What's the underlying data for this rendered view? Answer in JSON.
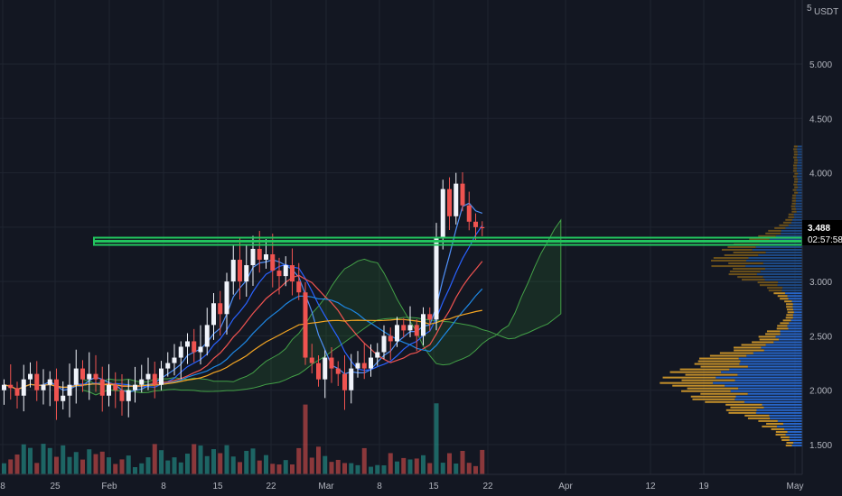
{
  "currency_label": "USDT",
  "top_tick": "5",
  "current_price_label": "3.488",
  "countdown_label": "02:57:58",
  "colors": {
    "background": "#131722",
    "grid": "#1f2430",
    "up": "#26a69a",
    "down": "#ef5350",
    "candle_up": "#f0f3fa",
    "candle_down": "#ef5350",
    "support_line": "#22c55e",
    "ma_fast": "#2962ff",
    "ma_slow": "#f5a623",
    "vp_up": "#2a6fdb",
    "vp_down": "#e3a42b",
    "cloud_green": "#2e7d32",
    "cloud_red": "#b71c1c"
  },
  "chart_data": {
    "type": "candlestick",
    "title": "",
    "y_axis": {
      "ticks": [
        5.0,
        4.5,
        4.0,
        3.5,
        3.0,
        2.5,
        2.0,
        1.5
      ],
      "tick_labels": [
        "5.000",
        "4.500",
        "4.000",
        "3.500",
        "3.000",
        "2.500",
        "2.000",
        "1.500"
      ],
      "range": [
        1.33,
        5.53
      ]
    },
    "x_axis": {
      "tick_labels": [
        "8",
        "25",
        "Feb",
        "8",
        "15",
        "22",
        "Mar",
        "8",
        "15",
        "22",
        "Apr",
        "12",
        "19",
        "May"
      ]
    },
    "support_level": 3.37,
    "current_price": 3.488,
    "candles_close": [
      2.05,
      2.02,
      1.95,
      2.1,
      2.15,
      2.0,
      2.05,
      2.1,
      1.9,
      1.95,
      2.05,
      2.2,
      2.1,
      2.15,
      2.1,
      1.95,
      2.05,
      2.0,
      1.9,
      2.0,
      2.05,
      2.1,
      2.15,
      2.05,
      2.2,
      2.25,
      2.3,
      2.4,
      2.45,
      2.35,
      2.4,
      2.6,
      2.8,
      2.7,
      3.0,
      3.2,
      3.0,
      3.15,
      3.3,
      3.2,
      3.25,
      3.1,
      3.05,
      3.15,
      3.0,
      2.9,
      2.3,
      2.25,
      2.1,
      2.3,
      2.2,
      2.15,
      2.0,
      2.2,
      2.25,
      2.2,
      2.3,
      2.35,
      2.5,
      2.45,
      2.6,
      2.55,
      2.6,
      2.5,
      2.7,
      2.65,
      3.4,
      3.85,
      3.6,
      3.9,
      3.7,
      3.55,
      3.5,
      3.49
    ],
    "volume_bars": 74
  }
}
